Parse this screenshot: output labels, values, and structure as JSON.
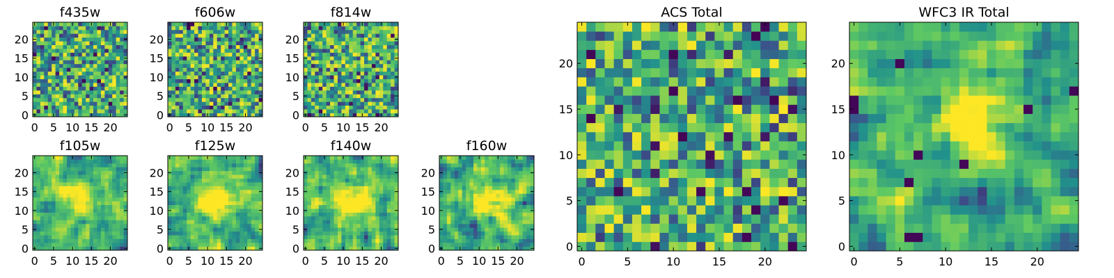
{
  "figure": {
    "background": "#ffffff",
    "colormap": "viridis",
    "colormap_stops": [
      "#440154",
      "#3b528b",
      "#21918c",
      "#5ec962",
      "#fde725"
    ]
  },
  "chart_data": [
    {
      "type": "heatmap",
      "title": "f435w",
      "grid_size": 25,
      "x_ticks": [
        "0",
        "5",
        "10",
        "15",
        "20"
      ],
      "y_ticks": [
        "0",
        "5",
        "10",
        "15",
        "20"
      ],
      "xlim": [
        0,
        25
      ],
      "ylim": [
        0,
        25
      ],
      "pattern": "uniform noise",
      "seed": 11,
      "value_range": [
        0,
        1
      ],
      "blobs": []
    },
    {
      "type": "heatmap",
      "title": "f606w",
      "grid_size": 25,
      "x_ticks": [
        "0",
        "5",
        "10",
        "15",
        "20"
      ],
      "y_ticks": [
        "0",
        "5",
        "10",
        "15",
        "20"
      ],
      "xlim": [
        0,
        25
      ],
      "ylim": [
        0,
        25
      ],
      "pattern": "uniform noise",
      "seed": 23,
      "value_range": [
        0,
        1
      ],
      "blobs": []
    },
    {
      "type": "heatmap",
      "title": "f814w",
      "grid_size": 25,
      "x_ticks": [
        "0",
        "5",
        "10",
        "15",
        "20"
      ],
      "y_ticks": [
        "0",
        "5",
        "10",
        "15",
        "20"
      ],
      "xlim": [
        0,
        25
      ],
      "ylim": [
        0,
        25
      ],
      "pattern": "uniform noise",
      "seed": 37,
      "value_range": [
        0,
        1
      ],
      "blobs": []
    },
    {
      "type": "heatmap",
      "title": "f105w",
      "grid_size": 25,
      "x_ticks": [
        "0",
        "5",
        "10",
        "15",
        "20"
      ],
      "y_ticks": [
        "0",
        "5",
        "10",
        "15",
        "20"
      ],
      "xlim": [
        0,
        25
      ],
      "ylim": [
        0,
        25
      ],
      "pattern": "smoothed noise, central source",
      "seed": 41,
      "value_range": [
        0,
        1
      ],
      "blobs": [
        {
          "x": 12.5,
          "y": 13,
          "sigma": 3,
          "amp": 0.45
        }
      ]
    },
    {
      "type": "heatmap",
      "title": "f125w",
      "grid_size": 25,
      "x_ticks": [
        "0",
        "5",
        "10",
        "15",
        "20"
      ],
      "y_ticks": [
        "0",
        "5",
        "10",
        "15",
        "20"
      ],
      "xlim": [
        0,
        25
      ],
      "ylim": [
        0,
        25
      ],
      "pattern": "smoothed noise, central source",
      "seed": 53,
      "value_range": [
        0,
        1
      ],
      "blobs": [
        {
          "x": 12.5,
          "y": 12.5,
          "sigma": 3.5,
          "amp": 0.45
        }
      ]
    },
    {
      "type": "heatmap",
      "title": "f140w",
      "grid_size": 25,
      "x_ticks": [
        "0",
        "5",
        "10",
        "15",
        "20"
      ],
      "y_ticks": [
        "0",
        "5",
        "10",
        "15",
        "20"
      ],
      "xlim": [
        0,
        25
      ],
      "ylim": [
        0,
        25
      ],
      "pattern": "smoothed noise, central source",
      "seed": 67,
      "value_range": [
        0,
        1
      ],
      "blobs": [
        {
          "x": 13,
          "y": 13,
          "sigma": 3,
          "amp": 0.45
        }
      ]
    },
    {
      "type": "heatmap",
      "title": "f160w",
      "grid_size": 25,
      "x_ticks": [
        "0",
        "5",
        "10",
        "15",
        "20"
      ],
      "y_ticks": [
        "0",
        "5",
        "10",
        "15",
        "20"
      ],
      "xlim": [
        0,
        25
      ],
      "ylim": [
        0,
        25
      ],
      "pattern": "smoothed noise, central source",
      "seed": 79,
      "value_range": [
        0,
        1
      ],
      "blobs": [
        {
          "x": 12.5,
          "y": 12.5,
          "sigma": 3,
          "amp": 0.55
        }
      ]
    },
    {
      "type": "heatmap",
      "title": "ACS Total",
      "grid_size": 25,
      "x_ticks": [
        "0",
        "5",
        "10",
        "15",
        "20"
      ],
      "y_ticks": [
        "0",
        "5",
        "10",
        "15",
        "20"
      ],
      "xlim": [
        0,
        25
      ],
      "ylim": [
        0,
        25
      ],
      "pattern": "noise with a few dark pixels",
      "seed": 97,
      "value_range": [
        0,
        1
      ],
      "blobs": [],
      "dark_pixels": [
        [
          10,
          21
        ],
        [
          10,
          17
        ],
        [
          17,
          16
        ],
        [
          21,
          16
        ],
        [
          4,
          6
        ],
        [
          18,
          6
        ],
        [
          22,
          5
        ],
        [
          18,
          1
        ],
        [
          19,
          4
        ]
      ]
    },
    {
      "type": "heatmap",
      "title": "WFC3 IR Total",
      "grid_size": 25,
      "x_ticks": [
        "0",
        "5",
        "10",
        "15",
        "20"
      ],
      "y_ticks": [
        "0",
        "5",
        "10",
        "15",
        "20"
      ],
      "xlim": [
        0,
        25
      ],
      "ylim": [
        0,
        25
      ],
      "pattern": "smoothed noise, central source",
      "seed": 131,
      "value_range": [
        0,
        1
      ],
      "blobs": [
        {
          "x": 12.5,
          "y": 13,
          "sigma": 2.5,
          "amp": 0.6
        }
      ],
      "dark_pixels": [
        [
          0,
          15
        ],
        [
          0,
          16
        ],
        [
          24,
          17
        ],
        [
          6,
          1
        ],
        [
          7,
          1
        ],
        [
          6,
          7
        ],
        [
          7,
          10
        ],
        [
          12,
          9
        ],
        [
          5,
          20
        ],
        [
          19,
          15
        ]
      ]
    }
  ]
}
